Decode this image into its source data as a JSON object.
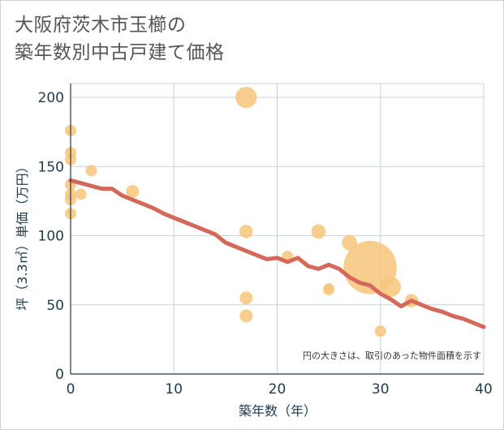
{
  "title": "大阪府茨木市玉櫛の\n築年数別中古戸建て価格",
  "colors": {
    "bubble": "#f6c57a",
    "trend": "#d4695a",
    "grid": "#c8d3dc",
    "text": "#1f3a4d"
  },
  "chart_data": {
    "type": "scatter",
    "title": "大阪府茨木市玉櫛の築年数別中古戸建て価格",
    "xlabel": "築年数（年）",
    "ylabel": "坪（3.3㎡）単価（万円）",
    "xlim": [
      0,
      40
    ],
    "ylim": [
      0,
      210
    ],
    "xticks": [
      0,
      10,
      20,
      30,
      40
    ],
    "yticks": [
      0,
      50,
      100,
      150,
      200
    ],
    "grid": true,
    "annotation": "円の大きさは、取引のあった物件面積を示す",
    "points": [
      {
        "x": 0,
        "y": 176,
        "size": 1
      },
      {
        "x": 0,
        "y": 160,
        "size": 1
      },
      {
        "x": 0,
        "y": 155,
        "size": 1
      },
      {
        "x": 0,
        "y": 137,
        "size": 1
      },
      {
        "x": 0,
        "y": 130,
        "size": 1
      },
      {
        "x": 0,
        "y": 126,
        "size": 1
      },
      {
        "x": 0,
        "y": 116,
        "size": 1
      },
      {
        "x": 1,
        "y": 130,
        "size": 1
      },
      {
        "x": 2,
        "y": 147,
        "size": 1
      },
      {
        "x": 6,
        "y": 132,
        "size": 1.3
      },
      {
        "x": 17,
        "y": 200,
        "size": 3.5
      },
      {
        "x": 17,
        "y": 103,
        "size": 1.4
      },
      {
        "x": 17,
        "y": 55,
        "size": 1.3
      },
      {
        "x": 17,
        "y": 42,
        "size": 1.3
      },
      {
        "x": 21,
        "y": 85,
        "size": 1
      },
      {
        "x": 24,
        "y": 103,
        "size": 1.6
      },
      {
        "x": 25,
        "y": 62,
        "size": 0.8
      },
      {
        "x": 25,
        "y": 61,
        "size": 1
      },
      {
        "x": 27,
        "y": 95,
        "size": 1.8
      },
      {
        "x": 29,
        "y": 77,
        "size": 22
      },
      {
        "x": 31,
        "y": 63,
        "size": 3.2
      },
      {
        "x": 33,
        "y": 53,
        "size": 1.4
      },
      {
        "x": 30,
        "y": 31,
        "size": 1
      }
    ],
    "trend": {
      "name": "trend",
      "x": [
        0,
        1,
        2,
        3,
        4,
        5,
        6,
        7,
        8,
        9,
        10,
        11,
        12,
        13,
        14,
        15,
        16,
        17,
        18,
        19,
        20,
        21,
        22,
        23,
        24,
        25,
        26,
        27,
        28,
        29,
        30,
        31,
        32,
        33,
        34,
        35,
        36,
        37,
        38,
        39,
        40
      ],
      "y": [
        140,
        138,
        136,
        134,
        134,
        129,
        126,
        123,
        120,
        116,
        113,
        110,
        107,
        104,
        101,
        95,
        92,
        89,
        86,
        83,
        84,
        81,
        84,
        78,
        76,
        79,
        76,
        70,
        66,
        64,
        58,
        54,
        49,
        53,
        50,
        47,
        45,
        42,
        40,
        37,
        34
      ]
    }
  }
}
